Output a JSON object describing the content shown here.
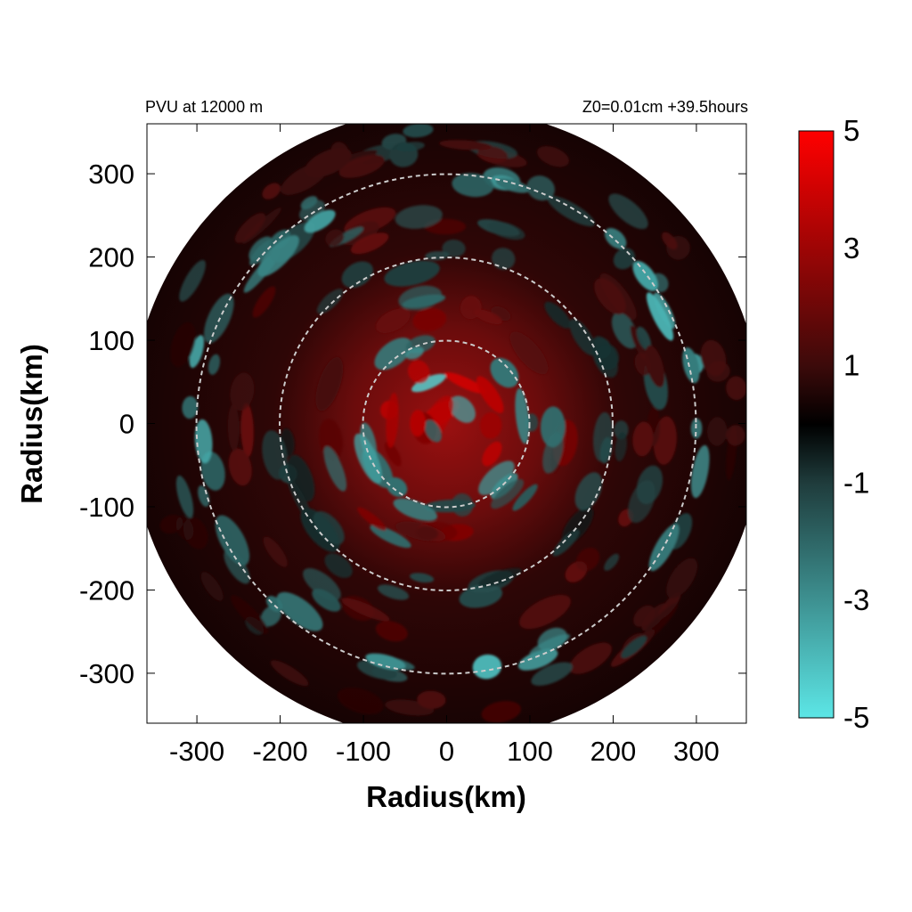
{
  "chart_data": {
    "type": "heatmap",
    "title_left": "PVU at 12000 m",
    "title_right": "Z0=0.01cm  +39.5hours",
    "xlabel": "Radius(km)",
    "ylabel": "Radius(km)",
    "xlim": [
      -360,
      360
    ],
    "ylim": [
      -360,
      360
    ],
    "x_ticks": [
      -300,
      -200,
      -100,
      0,
      100,
      200,
      300
    ],
    "y_ticks": [
      300,
      200,
      100,
      0,
      -100,
      -200,
      -300
    ],
    "domain_radius_km": 380,
    "reference_circles_km": [
      100,
      200,
      300
    ],
    "colorbar": {
      "min": -5,
      "max": 5,
      "ticks": [
        "5",
        "3",
        "1",
        "-1",
        "-3",
        "-5"
      ],
      "stops": [
        {
          "value": -5,
          "color": "#5ce6e6"
        },
        {
          "value": -1,
          "color": "#1f3c3c"
        },
        {
          "value": 0,
          "color": "#000000"
        },
        {
          "value": 1,
          "color": "#3c0a0a"
        },
        {
          "value": 5,
          "color": "#ff0000"
        }
      ]
    },
    "features": [
      {
        "radius_km": 20,
        "value": 4.0
      },
      {
        "radius_km": 60,
        "value": 4.5
      },
      {
        "radius_km": 100,
        "value": -3.5
      },
      {
        "radius_km": 140,
        "value": 2.5
      },
      {
        "radius_km": 200,
        "value": -1.5
      },
      {
        "radius_km": 250,
        "value": 2.0
      },
      {
        "radius_km": 300,
        "value": -4.0
      },
      {
        "radius_km": 340,
        "value": 1.5
      }
    ]
  }
}
